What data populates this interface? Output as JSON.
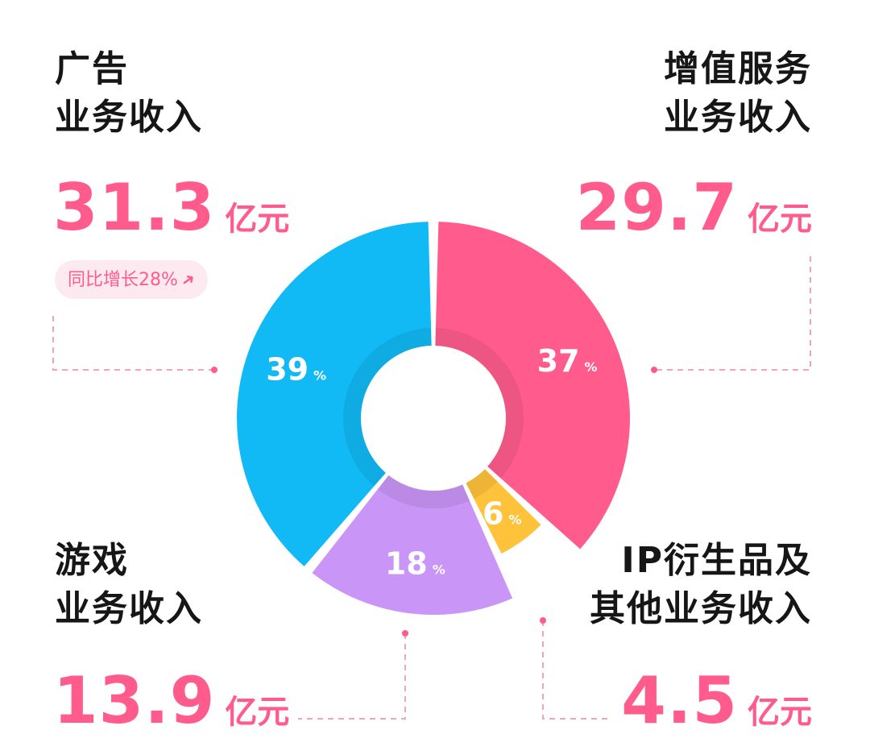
{
  "chart_data": {
    "type": "pie",
    "style": "donut",
    "segments": [
      {
        "label_lines": [
          "广告",
          "业务收入"
        ],
        "amount": "31.3",
        "unit": "亿元",
        "pct": 39,
        "pct_unit": "%",
        "color": "#11baf5",
        "note": "同比增长28%"
      },
      {
        "label_lines": [
          "增值服务",
          "业务收入"
        ],
        "amount": "29.7",
        "unit": "亿元",
        "pct": 37,
        "pct_unit": "%",
        "color": "#ff5c8d"
      },
      {
        "label_lines": [
          "IP衍生品及",
          "其他业务收入"
        ],
        "amount": "4.5",
        "unit": "亿元",
        "pct": 6,
        "pct_unit": "%",
        "color": "#ffc23b"
      },
      {
        "label_lines": [
          "游戏",
          "业务收入"
        ],
        "amount": "13.9",
        "unit": "亿元",
        "pct": 18,
        "pct_unit": "%",
        "color": "#c995f6"
      }
    ],
    "accent_color": "#ff5c8d",
    "leader_color": "#f2a3bd"
  }
}
